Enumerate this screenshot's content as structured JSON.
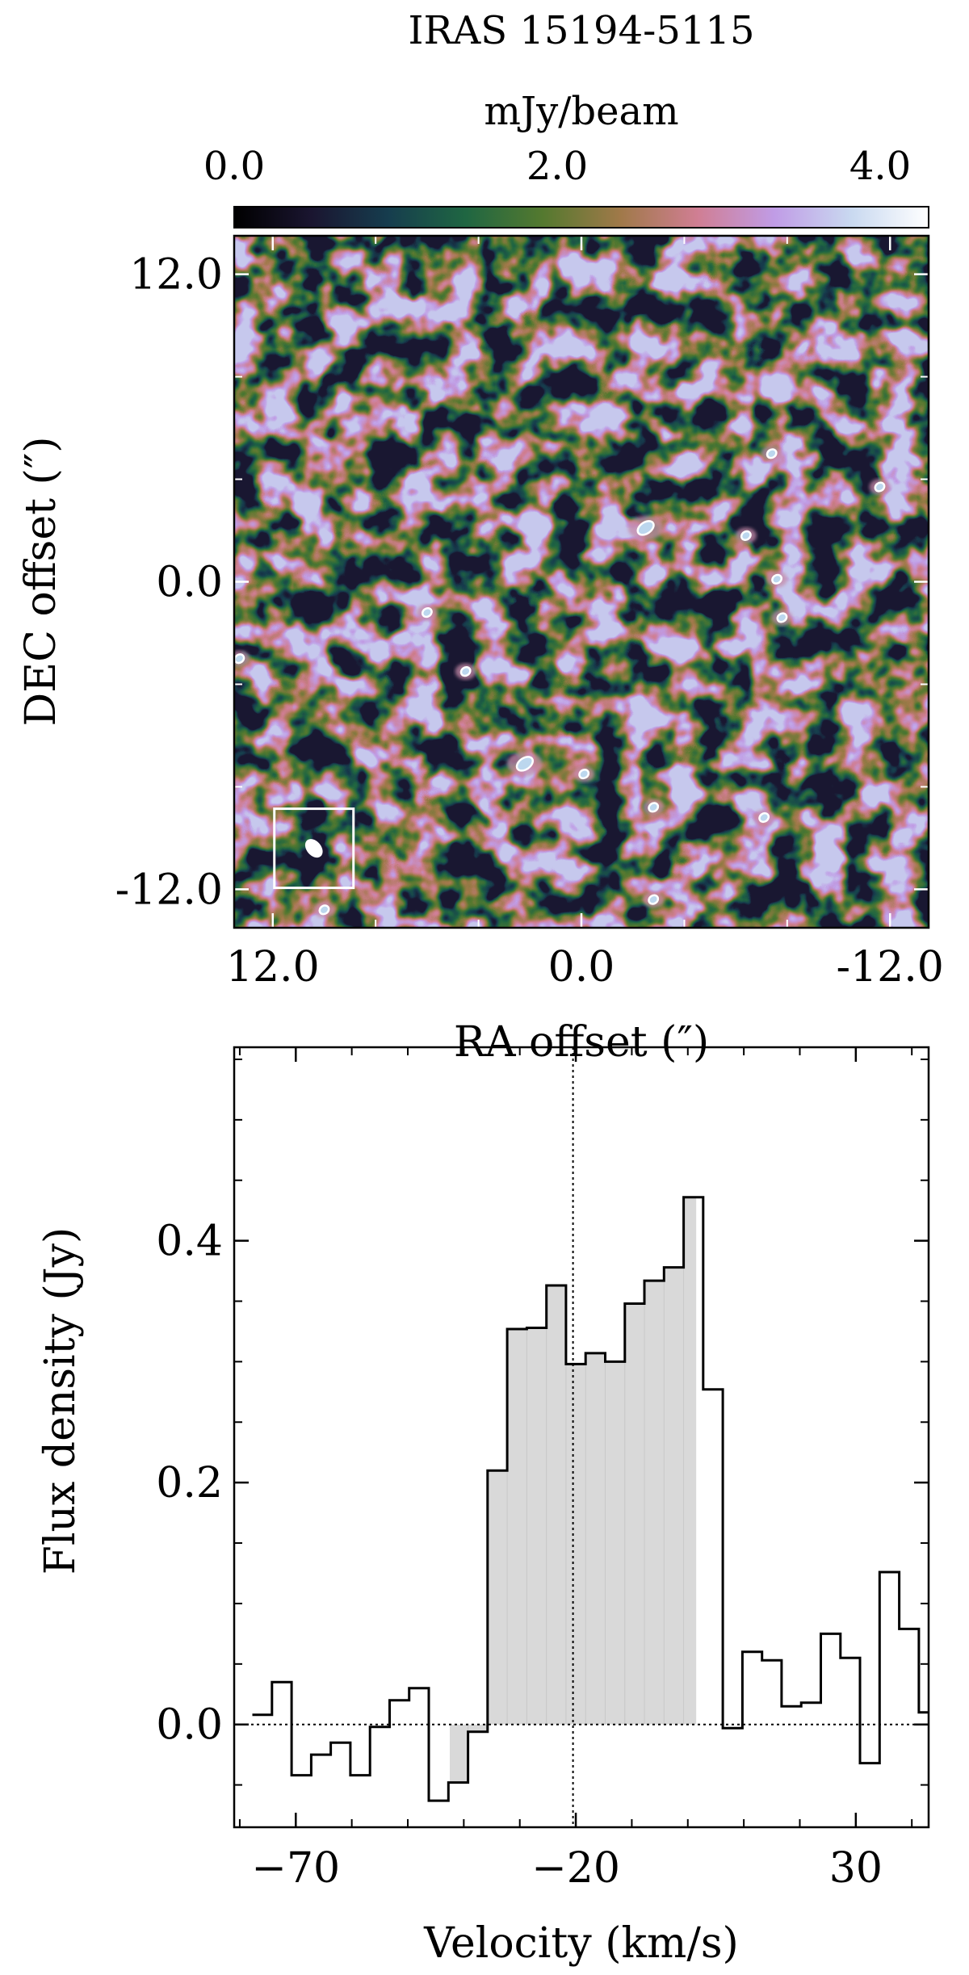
{
  "chart_data": [
    {
      "type": "heatmap",
      "title": "IRAS 15194-5115",
      "colorbar": {
        "label": "mJy/beam",
        "range": [
          0.0,
          4.3
        ],
        "ticks": [
          "0.0",
          "2.0",
          "4.0"
        ],
        "tick_values": [
          0.0,
          2.0,
          4.0
        ],
        "colormap": "cubehelix",
        "colors": [
          "#000000",
          "#1a1530",
          "#163d4e",
          "#1f6642",
          "#54792f",
          "#a07949",
          "#d07e93",
          "#c09ce6",
          "#c9d9f0",
          "#ffffff"
        ]
      },
      "xlabel": "RA offset (″)",
      "ylabel": "DEC offset (″)",
      "xlim": [
        13.5,
        -13.5
      ],
      "ylim": [
        -13.5,
        13.5
      ],
      "xticks": [
        "12.0",
        "0.0",
        "-12.0"
      ],
      "xtick_values": [
        12.0,
        0.0,
        -12.0
      ],
      "yticks": [
        "12.0",
        "0.0",
        "-12.0"
      ],
      "ytick_values": [
        12.0,
        0.0,
        -12.0
      ],
      "beam": {
        "box_center": [
          10.4,
          -10.4
        ]
      },
      "contour_peaks": [
        {
          "ra": 2.2,
          "dec": -7.1
        },
        {
          "ra": -2.5,
          "dec": 2.1
        },
        {
          "ra": -6.4,
          "dec": 1.8
        },
        {
          "ra": -7.6,
          "dec": 0.1
        },
        {
          "ra": 6.0,
          "dec": -1.2
        },
        {
          "ra": -7.4,
          "dec": 5.0
        },
        {
          "ra": -0.1,
          "dec": -7.5
        },
        {
          "ra": -7.1,
          "dec": -9.2
        },
        {
          "ra": -7.8,
          "dec": -1.4
        },
        {
          "ra": 13.3,
          "dec": -3.0
        },
        {
          "ra": 4.5,
          "dec": -3.5
        },
        {
          "ra": -2.8,
          "dec": -8.8
        },
        {
          "ra": -2.8,
          "dec": -12.4
        },
        {
          "ra": 10.0,
          "dec": -12.8
        },
        {
          "ra": -11.6,
          "dec": 3.7
        }
      ]
    },
    {
      "type": "line",
      "step": "mid",
      "xlabel": "Velocity (km/s)",
      "ylabel": "Flux density (Jy)",
      "xlim": [
        -81,
        43
      ],
      "ylim": [
        -0.085,
        0.56
      ],
      "xticks": [
        "−70",
        "−20",
        "30"
      ],
      "xtick_values": [
        -70,
        -20,
        30
      ],
      "yticks": [
        "0.0",
        "0.2",
        "0.4"
      ],
      "ytick_values": [
        0.0,
        0.2,
        0.4
      ],
      "zero_line": 0.0,
      "systemic_velocity": -20.5,
      "shaded_range": [
        -42.5,
        1.5
      ],
      "bin_width": 3.5,
      "x": [
        -76,
        -72.5,
        -69,
        -65.5,
        -62,
        -58.5,
        -55,
        -51.5,
        -48,
        -44.5,
        -41,
        -37.5,
        -34,
        -30.5,
        -27,
        -23.5,
        -20,
        -16.5,
        -13,
        -9.5,
        -6,
        -2.5,
        1,
        4.5,
        8,
        11.5,
        15,
        18.5,
        22,
        25.5,
        29,
        32.5,
        36,
        39.5,
        43
      ],
      "y": [
        0.008,
        0.035,
        -0.042,
        -0.025,
        -0.015,
        -0.042,
        -0.002,
        0.02,
        0.03,
        -0.063,
        -0.048,
        -0.006,
        0.21,
        0.327,
        0.328,
        0.363,
        0.298,
        0.307,
        0.3,
        0.348,
        0.367,
        0.378,
        0.436,
        0.277,
        -0.003,
        0.06,
        0.053,
        0.015,
        0.018,
        0.075,
        0.055,
        -0.032,
        0.126,
        0.079,
        0.01
      ]
    }
  ]
}
